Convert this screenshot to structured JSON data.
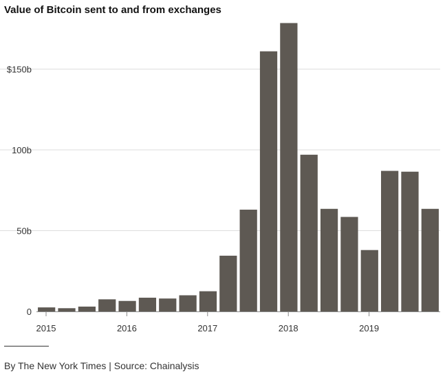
{
  "title": "Value of Bitcoin sent to and from exchanges",
  "credit": "By The New York Times | Source: Chainalysis",
  "colors": {
    "bar": "#5e5953",
    "grid": "#dddddd",
    "axis": "#888888",
    "text": "#333333"
  },
  "chart_data": {
    "type": "bar",
    "title": "Value of Bitcoin sent to and from exchanges",
    "xlabel": "",
    "ylabel": "",
    "unit": "billion USD",
    "ylim": [
      0,
      180
    ],
    "y_ticks": [
      {
        "value": 0,
        "label": "0"
      },
      {
        "value": 50,
        "label": "50b"
      },
      {
        "value": 100,
        "label": "100b"
      },
      {
        "value": 150,
        "label": "$150b"
      }
    ],
    "x_ticks": [
      {
        "label": "2015",
        "at_index": 0
      },
      {
        "label": "2016",
        "at_index": 4
      },
      {
        "label": "2017",
        "at_index": 8
      },
      {
        "label": "2018",
        "at_index": 12
      },
      {
        "label": "2019",
        "at_index": 16
      }
    ],
    "categories": [
      "2015 Q1",
      "2015 Q2",
      "2015 Q3",
      "2015 Q4",
      "2016 Q1",
      "2016 Q2",
      "2016 Q3",
      "2016 Q4",
      "2017 Q1",
      "2017 Q2",
      "2017 Q3",
      "2017 Q4",
      "2018 Q1",
      "2018 Q2",
      "2018 Q3",
      "2018 Q4",
      "2019 Q1",
      "2019 Q2",
      "2019 Q3",
      "2019 Q4"
    ],
    "values": [
      2.5,
      2,
      3,
      7.5,
      6.5,
      8.5,
      8,
      10,
      12.5,
      34.5,
      63,
      161,
      178.5,
      97,
      63.5,
      58.5,
      38,
      87,
      86.5,
      63.5
    ],
    "grid": true,
    "legend": "none"
  }
}
